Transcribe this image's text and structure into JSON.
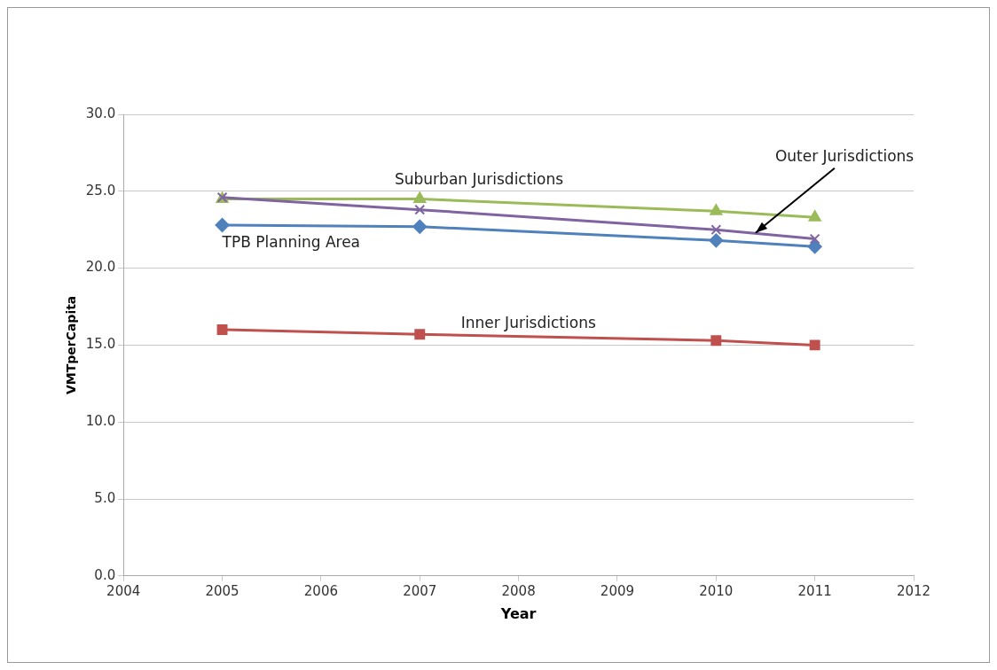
{
  "chart_data": {
    "type": "line",
    "xlabel": "Year",
    "ylabel": "VMTperCapita",
    "x": [
      2005,
      2007,
      2010,
      2011
    ],
    "xlim": [
      2004,
      2012
    ],
    "xticks": [
      2004,
      2005,
      2006,
      2007,
      2008,
      2009,
      2010,
      2011,
      2012
    ],
    "ylim": [
      0,
      30
    ],
    "yticks": [
      {
        "value": 0,
        "label": "0.0"
      },
      {
        "value": 5,
        "label": "5.0"
      },
      {
        "value": 10,
        "label": "10.0"
      },
      {
        "value": 15,
        "label": "15.0"
      },
      {
        "value": 20,
        "label": "20.0"
      },
      {
        "value": 25,
        "label": "25.0"
      },
      {
        "value": 30,
        "label": "30.0"
      }
    ],
    "grid": "y",
    "legend": false,
    "series": [
      {
        "name": "TPB Planning Area",
        "color": "#4f81bd",
        "marker": "diamond",
        "values": [
          22.8,
          22.7,
          21.8,
          21.4
        ]
      },
      {
        "name": "Inner Jurisdictions",
        "color": "#c0504d",
        "marker": "square",
        "values": [
          16.0,
          15.7,
          15.3,
          15.0
        ]
      },
      {
        "name": "Suburban Jurisdictions",
        "color": "#9bbb59",
        "marker": "triangle",
        "values": [
          24.5,
          24.5,
          23.7,
          23.3
        ]
      },
      {
        "name": "Outer Jurisdictions",
        "color": "#8064a2",
        "marker": "cross",
        "values": [
          24.6,
          23.8,
          22.5,
          21.9
        ]
      }
    ]
  }
}
